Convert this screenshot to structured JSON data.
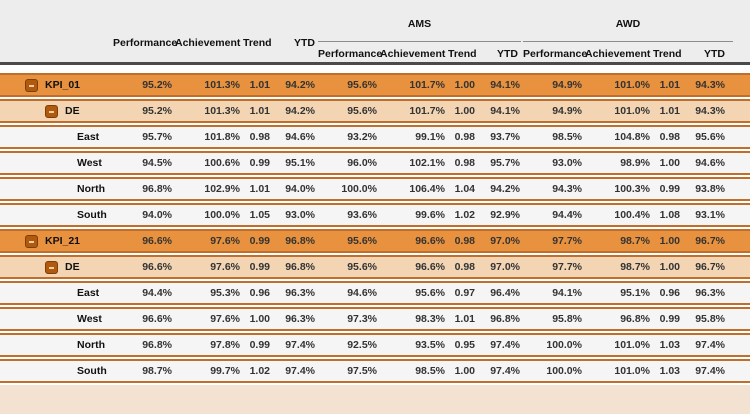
{
  "table": {
    "measure_headers": [
      "Performance",
      "Achievement",
      "Trend",
      "YTD"
    ],
    "groups": [
      {
        "label": ""
      },
      {
        "label": "AMS"
      },
      {
        "label": "AWD"
      }
    ],
    "rows": [
      {
        "label": "KPI_01",
        "level": 0,
        "expandable": true,
        "expander_state": "collapse",
        "values": [
          "95.2%",
          "101.3%",
          "1.01",
          "94.2%",
          "95.6%",
          "101.7%",
          "1.00",
          "94.1%",
          "94.9%",
          "101.0%",
          "1.01",
          "94.3%"
        ]
      },
      {
        "label": "DE",
        "level": 1,
        "expandable": true,
        "expander_state": "collapse",
        "values": [
          "95.2%",
          "101.3%",
          "1.01",
          "94.2%",
          "95.6%",
          "101.7%",
          "1.00",
          "94.1%",
          "94.9%",
          "101.0%",
          "1.01",
          "94.3%"
        ]
      },
      {
        "label": "East",
        "level": 2,
        "expandable": false,
        "values": [
          "95.7%",
          "101.8%",
          "0.98",
          "94.6%",
          "93.2%",
          "99.1%",
          "0.98",
          "93.7%",
          "98.5%",
          "104.8%",
          "0.98",
          "95.6%"
        ]
      },
      {
        "label": "West",
        "level": 2,
        "expandable": false,
        "values": [
          "94.5%",
          "100.6%",
          "0.99",
          "95.1%",
          "96.0%",
          "102.1%",
          "0.98",
          "95.7%",
          "93.0%",
          "98.9%",
          "1.00",
          "94.6%"
        ]
      },
      {
        "label": "North",
        "level": 2,
        "expandable": false,
        "values": [
          "96.8%",
          "102.9%",
          "1.01",
          "94.0%",
          "100.0%",
          "106.4%",
          "1.04",
          "94.2%",
          "94.3%",
          "100.3%",
          "0.99",
          "93.8%"
        ]
      },
      {
        "label": "South",
        "level": 2,
        "expandable": false,
        "values": [
          "94.0%",
          "100.0%",
          "1.05",
          "93.0%",
          "93.6%",
          "99.6%",
          "1.02",
          "92.9%",
          "94.4%",
          "100.4%",
          "1.08",
          "93.1%"
        ]
      },
      {
        "label": "KPI_21",
        "level": 0,
        "expandable": true,
        "expander_state": "collapse",
        "values": [
          "96.6%",
          "97.6%",
          "0.99",
          "96.8%",
          "95.6%",
          "96.6%",
          "0.98",
          "97.0%",
          "97.7%",
          "98.7%",
          "1.00",
          "96.7%"
        ]
      },
      {
        "label": "DE",
        "level": 1,
        "expandable": true,
        "expander_state": "collapse",
        "values": [
          "96.6%",
          "97.6%",
          "0.99",
          "96.8%",
          "95.6%",
          "96.6%",
          "0.98",
          "97.0%",
          "97.7%",
          "98.7%",
          "1.00",
          "96.7%"
        ]
      },
      {
        "label": "East",
        "level": 2,
        "expandable": false,
        "values": [
          "94.4%",
          "95.3%",
          "0.96",
          "96.3%",
          "94.6%",
          "95.6%",
          "0.97",
          "96.4%",
          "94.1%",
          "95.1%",
          "0.96",
          "96.3%"
        ]
      },
      {
        "label": "West",
        "level": 2,
        "expandable": false,
        "values": [
          "96.6%",
          "97.6%",
          "1.00",
          "96.3%",
          "97.3%",
          "98.3%",
          "1.01",
          "96.8%",
          "95.8%",
          "96.8%",
          "0.99",
          "95.8%"
        ]
      },
      {
        "label": "North",
        "level": 2,
        "expandable": false,
        "values": [
          "96.8%",
          "97.8%",
          "0.99",
          "97.4%",
          "92.5%",
          "93.5%",
          "0.95",
          "97.4%",
          "100.0%",
          "101.0%",
          "1.03",
          "97.4%"
        ]
      },
      {
        "label": "South",
        "level": 2,
        "expandable": false,
        "values": [
          "98.7%",
          "99.7%",
          "1.02",
          "97.4%",
          "97.5%",
          "98.5%",
          "1.00",
          "97.4%",
          "100.0%",
          "101.0%",
          "1.03",
          "97.4%"
        ]
      }
    ]
  },
  "icons": {
    "collapse": "minus"
  },
  "colors": {
    "header_bg": "#ededed",
    "separator": "#4b4b4b",
    "group_line": "#8c8c8c",
    "kpi_row": "#e8913e",
    "de_row": "#f3d5b3",
    "detail_row": "#f5f5f5",
    "row_border": "#bf6f2b",
    "button": "#b1590e",
    "footer": "#f3e1d1"
  }
}
